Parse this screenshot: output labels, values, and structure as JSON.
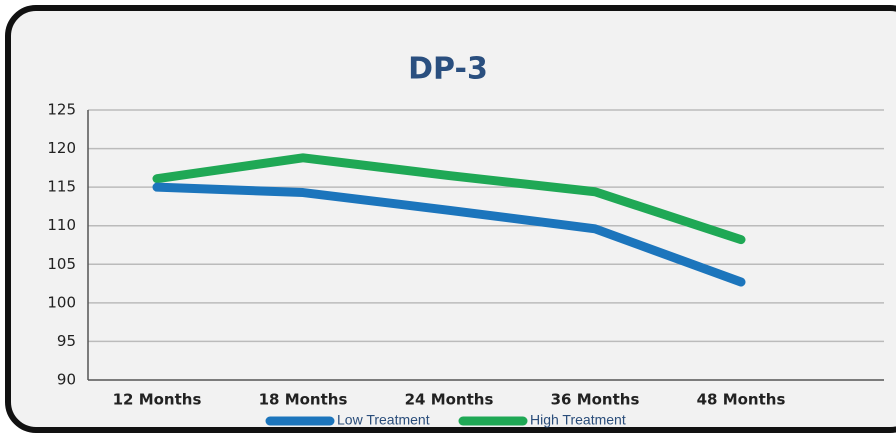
{
  "chart_data": {
    "type": "line",
    "title": "DP-3",
    "categories": [
      "12 Months",
      "18 Months",
      "24 Months",
      "36 Months",
      "48 Months"
    ],
    "series": [
      {
        "name": "Low Treatment",
        "color": "#1c75bc",
        "values": [
          115,
          114.3,
          112,
          109.6,
          102.7
        ]
      },
      {
        "name": "High Treatment",
        "color": "#1fa855",
        "values": [
          116.1,
          118.8,
          116.5,
          114.4,
          108.2
        ]
      }
    ],
    "ylim": [
      90,
      125
    ],
    "yticks": [
      90,
      95,
      100,
      105,
      110,
      115,
      120,
      125
    ],
    "grid": true
  }
}
